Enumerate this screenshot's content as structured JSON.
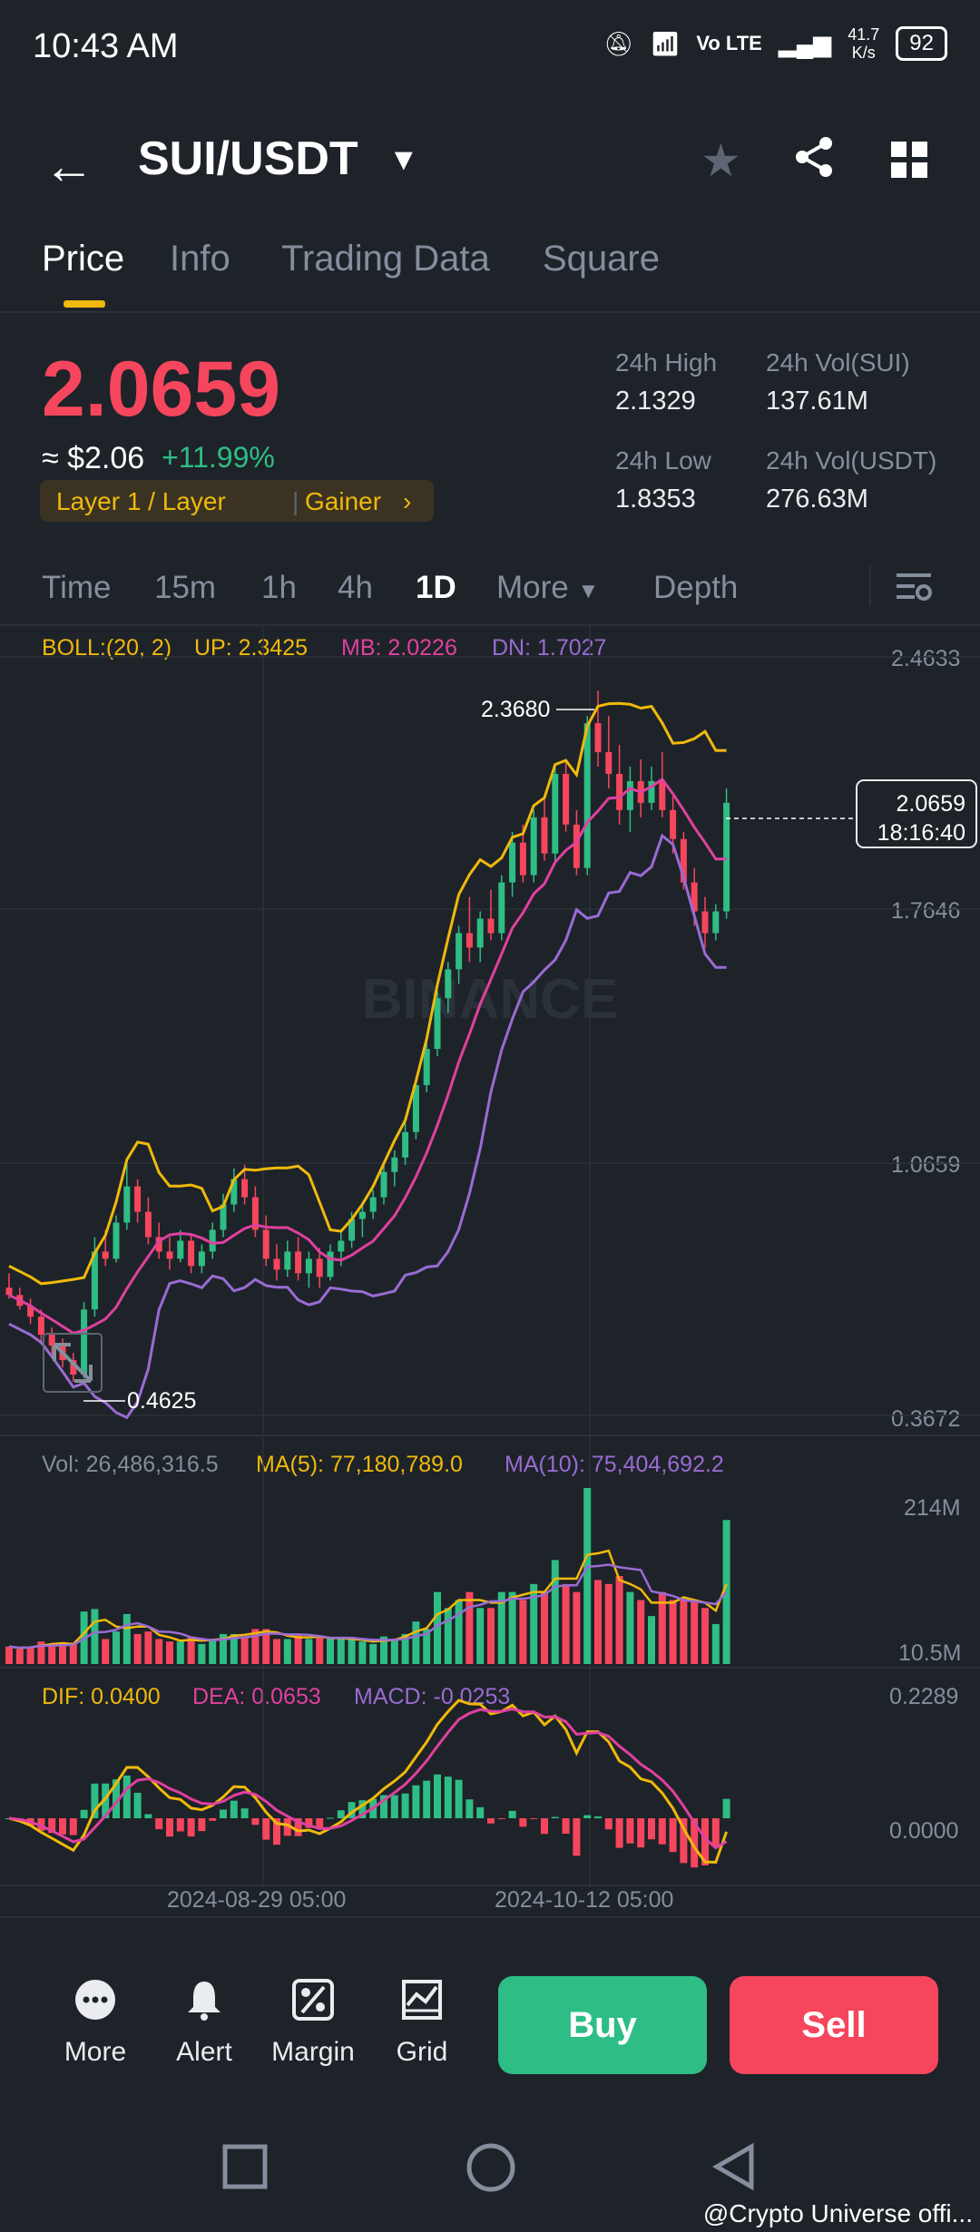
{
  "status": {
    "time": "10:43 AM",
    "net": "Vo LTE",
    "speed_top": "41.7",
    "speed_bottom": "K/s",
    "battery": "92"
  },
  "header": {
    "pair": "SUI/USDT"
  },
  "tabs": [
    "Price",
    "Info",
    "Trading Data",
    "Square"
  ],
  "price": {
    "last": "2.0659",
    "usd": "≈ $2.06",
    "change": "+11.99%",
    "tag_left": "Layer 1 / Layer",
    "tag_right": "Gainer",
    "high_label": "24h High",
    "high": "2.1329",
    "low_label": "24h Low",
    "low": "1.8353",
    "vol_sui_label": "24h Vol(SUI)",
    "vol_sui": "137.61M",
    "vol_usdt_label": "24h Vol(USDT)",
    "vol_usdt": "276.63M"
  },
  "timeframes": [
    "Time",
    "15m",
    "1h",
    "4h",
    "1D",
    "More",
    "Depth"
  ],
  "boll": {
    "label": "BOLL:(20, 2)",
    "up": "UP: 2.3425",
    "mb": "MB: 2.0226",
    "dn": "DN: 1.7027"
  },
  "price_axis": [
    "2.4633",
    "1.7646",
    "1.0659",
    "0.3672"
  ],
  "chart_labels": {
    "high_marker": "2.3680",
    "low_marker": "0.4625",
    "current_price": "2.0659",
    "countdown": "18:16:40"
  },
  "watermark": "BINANCE",
  "volume": {
    "vol": "Vol: 26,486,316.5",
    "ma5": "MA(5): 77,180,789.0",
    "ma10": "MA(10): 75,404,692.2",
    "axis_top": "214M",
    "axis_bottom": "10.5M"
  },
  "macd": {
    "dif": "DIF: 0.0400",
    "dea": "DEA: 0.0653",
    "macd": "MACD: -0.0253",
    "axis_top": "0.2289",
    "axis_mid": "0.0000"
  },
  "dates": [
    "2024-08-29 05:00",
    "2024-10-12 05:00"
  ],
  "toolbar": {
    "more": "More",
    "alert": "Alert",
    "margin": "Margin",
    "grid": "Grid",
    "buy": "Buy",
    "sell": "Sell"
  },
  "footer": "@Crypto Universe offi...",
  "colors": {
    "bg": "#1e2329",
    "up": "#2ebd85",
    "down": "#f6465d",
    "accent": "#f0b90b",
    "boll_up": "#f0b90b",
    "boll_mb": "#e040a0",
    "boll_dn": "#9a6bd4"
  },
  "chart_data": {
    "type": "candlestick",
    "x_range": [
      "2024-07-26",
      "2024-11-10"
    ],
    "y_range": [
      0.3672,
      2.4633
    ],
    "ohlc": [
      [
        0.72,
        0.76,
        0.69,
        0.7
      ],
      [
        0.7,
        0.72,
        0.66,
        0.67
      ],
      [
        0.67,
        0.69,
        0.62,
        0.64
      ],
      [
        0.64,
        0.66,
        0.57,
        0.59
      ],
      [
        0.59,
        0.61,
        0.53,
        0.56
      ],
      [
        0.56,
        0.58,
        0.5,
        0.52
      ],
      [
        0.52,
        0.54,
        0.46,
        0.48
      ],
      [
        0.48,
        0.68,
        0.47,
        0.66
      ],
      [
        0.66,
        0.86,
        0.64,
        0.82
      ],
      [
        0.82,
        0.88,
        0.78,
        0.8
      ],
      [
        0.8,
        0.92,
        0.79,
        0.9
      ],
      [
        0.9,
        1.08,
        0.88,
        1.0
      ],
      [
        1.0,
        1.02,
        0.9,
        0.93
      ],
      [
        0.93,
        0.97,
        0.84,
        0.86
      ],
      [
        0.86,
        0.9,
        0.8,
        0.82
      ],
      [
        0.82,
        0.86,
        0.77,
        0.8
      ],
      [
        0.8,
        0.88,
        0.79,
        0.85
      ],
      [
        0.85,
        0.87,
        0.76,
        0.78
      ],
      [
        0.78,
        0.84,
        0.76,
        0.82
      ],
      [
        0.82,
        0.9,
        0.8,
        0.88
      ],
      [
        0.88,
        0.98,
        0.86,
        0.95
      ],
      [
        0.95,
        1.05,
        0.93,
        1.02
      ],
      [
        1.02,
        1.06,
        0.95,
        0.97
      ],
      [
        0.97,
        1.0,
        0.86,
        0.88
      ],
      [
        0.88,
        0.92,
        0.78,
        0.8
      ],
      [
        0.8,
        0.84,
        0.74,
        0.77
      ],
      [
        0.77,
        0.85,
        0.75,
        0.82
      ],
      [
        0.82,
        0.86,
        0.74,
        0.76
      ],
      [
        0.76,
        0.82,
        0.72,
        0.8
      ],
      [
        0.8,
        0.83,
        0.72,
        0.75
      ],
      [
        0.75,
        0.84,
        0.74,
        0.82
      ],
      [
        0.82,
        0.88,
        0.78,
        0.85
      ],
      [
        0.85,
        0.93,
        0.83,
        0.91
      ],
      [
        0.91,
        0.95,
        0.86,
        0.93
      ],
      [
        0.93,
        0.99,
        0.91,
        0.97
      ],
      [
        0.97,
        1.06,
        0.95,
        1.04
      ],
      [
        1.04,
        1.1,
        1.0,
        1.08
      ],
      [
        1.08,
        1.18,
        1.06,
        1.15
      ],
      [
        1.15,
        1.3,
        1.13,
        1.28
      ],
      [
        1.28,
        1.4,
        1.26,
        1.38
      ],
      [
        1.38,
        1.54,
        1.36,
        1.52
      ],
      [
        1.52,
        1.62,
        1.48,
        1.6
      ],
      [
        1.6,
        1.72,
        1.56,
        1.7
      ],
      [
        1.7,
        1.8,
        1.62,
        1.66
      ],
      [
        1.66,
        1.76,
        1.62,
        1.74
      ],
      [
        1.74,
        1.82,
        1.68,
        1.7
      ],
      [
        1.7,
        1.86,
        1.68,
        1.84
      ],
      [
        1.84,
        1.98,
        1.8,
        1.95
      ],
      [
        1.95,
        2.0,
        1.84,
        1.86
      ],
      [
        1.86,
        2.04,
        1.84,
        2.02
      ],
      [
        2.02,
        2.08,
        1.9,
        1.92
      ],
      [
        1.92,
        2.16,
        1.9,
        2.14
      ],
      [
        2.14,
        2.18,
        1.98,
        2.0
      ],
      [
        2.0,
        2.04,
        1.86,
        1.88
      ],
      [
        1.88,
        2.3,
        1.86,
        2.28
      ],
      [
        2.28,
        2.37,
        2.16,
        2.2
      ],
      [
        2.2,
        2.3,
        2.1,
        2.14
      ],
      [
        2.14,
        2.22,
        2.0,
        2.04
      ],
      [
        2.04,
        2.16,
        1.98,
        2.12
      ],
      [
        2.12,
        2.18,
        2.02,
        2.06
      ],
      [
        2.06,
        2.16,
        2.04,
        2.12
      ],
      [
        2.12,
        2.2,
        2.02,
        2.04
      ],
      [
        2.04,
        2.08,
        1.92,
        1.96
      ],
      [
        1.96,
        1.98,
        1.82,
        1.84
      ],
      [
        1.84,
        1.88,
        1.72,
        1.76
      ],
      [
        1.76,
        1.8,
        1.66,
        1.7
      ],
      [
        1.7,
        1.78,
        1.68,
        1.76
      ],
      [
        1.76,
        2.1,
        1.74,
        2.06
      ]
    ]
  }
}
